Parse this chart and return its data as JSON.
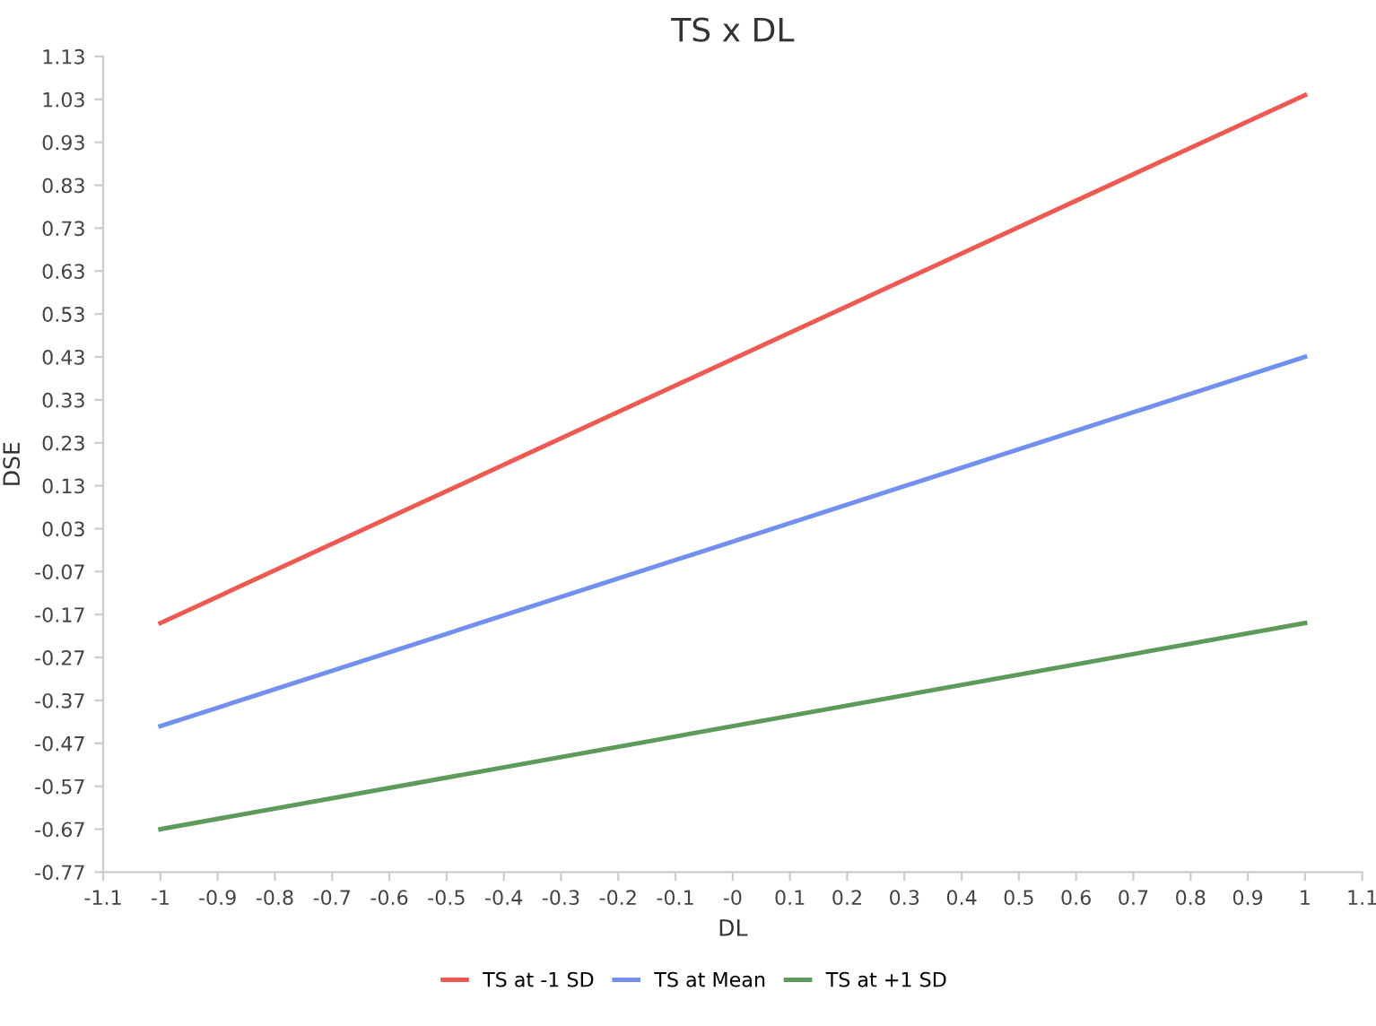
{
  "chart_data": {
    "type": "line",
    "title": "TS x DL",
    "xlabel": "DL",
    "ylabel": "DSE",
    "x": [
      -1,
      1
    ],
    "series": [
      {
        "name": "TS at -1 SD",
        "color": "#ee5a52",
        "values": [
          -0.19,
          1.04
        ]
      },
      {
        "name": "TS at Mean",
        "color": "#7190f0",
        "values": [
          -0.43,
          0.43
        ]
      },
      {
        "name": "TS at +1 SD",
        "color": "#5e9a5c",
        "values": [
          -0.67,
          -0.19
        ]
      }
    ],
    "xlim": [
      -1.1,
      1.1
    ],
    "xticks": [
      -1.1,
      -1,
      -0.9,
      -0.8,
      -0.7,
      -0.6,
      -0.5,
      -0.4,
      -0.3,
      -0.2,
      -0.1,
      {
        "value": 0,
        "label": "-0"
      },
      0.1,
      0.2,
      0.3,
      0.4,
      0.5,
      0.6,
      0.7,
      0.8,
      0.9,
      1,
      1.1
    ],
    "ylim": [
      -0.77,
      1.13
    ],
    "yticks": [
      -0.77,
      -0.67,
      -0.57,
      -0.47,
      -0.37,
      -0.27,
      -0.17,
      -0.07,
      0.03,
      0.13,
      0.23,
      0.33,
      0.43,
      0.53,
      0.63,
      0.73,
      0.83,
      0.93,
      1.03,
      1.13
    ],
    "grid": false,
    "legend": "bottom",
    "marker": "none",
    "line_style": "solid"
  }
}
